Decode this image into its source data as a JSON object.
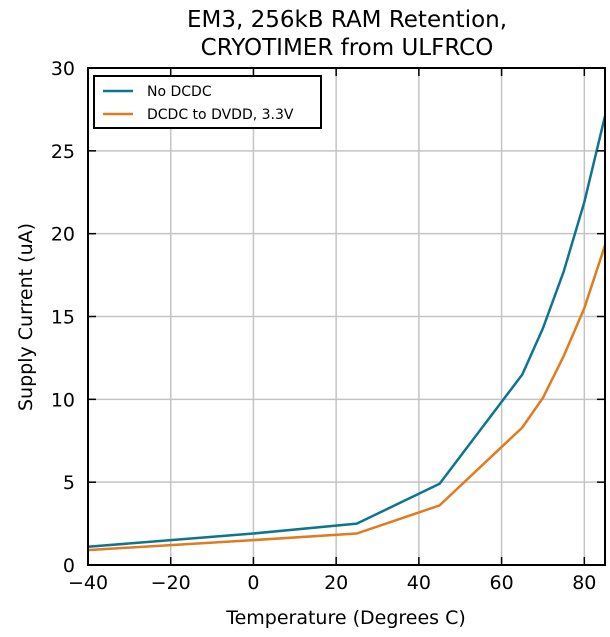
{
  "chart_data": {
    "type": "line",
    "title_lines": [
      "EM3, 256kB RAM Retention,",
      "CRYOTIMER from ULFRCO"
    ],
    "xlabel": "Temperature (Degrees C)",
    "ylabel": "Supply Current (uA)",
    "xlim": [
      -40,
      85
    ],
    "ylim": [
      0,
      30
    ],
    "xticks": [
      -40,
      -20,
      0,
      20,
      40,
      60,
      80
    ],
    "xtick_labels": [
      "−40",
      "−20",
      "0",
      "20",
      "40",
      "60",
      "80"
    ],
    "yticks": [
      0,
      5,
      10,
      15,
      20,
      25,
      30
    ],
    "ytick_labels": [
      "0",
      "5",
      "10",
      "15",
      "20",
      "25",
      "30"
    ],
    "grid": true,
    "legend_position": "top-left",
    "series": [
      {
        "name": "No DCDC",
        "color": "#0e7490",
        "x": [
          -40,
          -20,
          0,
          25,
          45,
          65,
          70,
          75,
          80,
          85
        ],
        "y": [
          1.1,
          1.5,
          1.9,
          2.5,
          4.9,
          11.5,
          14.3,
          17.7,
          21.9,
          27.1
        ]
      },
      {
        "name": "DCDC to DVDD, 3.3V",
        "color": "#e07b1f",
        "x": [
          -40,
          -20,
          0,
          25,
          45,
          65,
          70,
          75,
          80,
          85
        ],
        "y": [
          0.9,
          1.2,
          1.5,
          1.9,
          3.6,
          8.3,
          10.1,
          12.6,
          15.5,
          19.3
        ]
      }
    ]
  }
}
